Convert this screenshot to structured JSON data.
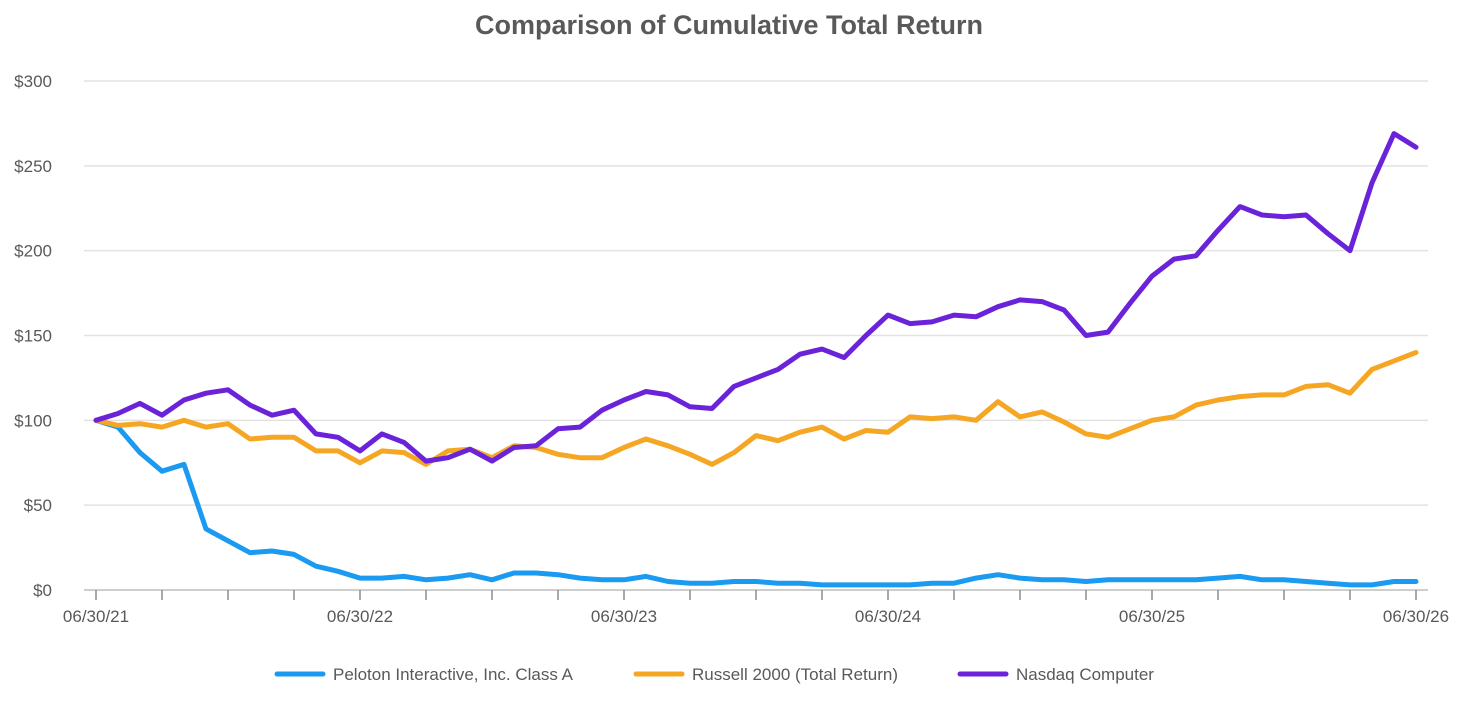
{
  "chart_data": {
    "type": "line",
    "title": "Comparison of Cumulative Total Return",
    "xlabel": "",
    "ylabel": "",
    "ylim": [
      0,
      300
    ],
    "yticks": [
      0,
      50,
      100,
      150,
      200,
      250,
      300
    ],
    "ytick_labels": [
      "$0",
      "$50",
      "$100",
      "$150",
      "$200",
      "$250",
      "$300"
    ],
    "x_count": 61,
    "minor_tick_every": 3,
    "xtick_labels": [
      {
        "index": 0,
        "label": "06/30/21"
      },
      {
        "index": 12,
        "label": "06/30/22"
      },
      {
        "index": 24,
        "label": "06/30/23"
      },
      {
        "index": 36,
        "label": "06/30/24"
      },
      {
        "index": 48,
        "label": "06/30/25"
      },
      {
        "index": 60,
        "label": "06/30/26"
      }
    ],
    "grid": true,
    "legend_position": "bottom",
    "series": [
      {
        "name": "Peloton Interactive, Inc. Class A",
        "color": "#1a9af0",
        "values": [
          100,
          96,
          81,
          70,
          74,
          36,
          29,
          22,
          23,
          21,
          14,
          11,
          7,
          7,
          8,
          6,
          7,
          9,
          6,
          10,
          10,
          9,
          7,
          6,
          6,
          8,
          5,
          4,
          4,
          5,
          5,
          4,
          4,
          3,
          3,
          3,
          3,
          3,
          4,
          4,
          7,
          9,
          7,
          6,
          6,
          5,
          6,
          6,
          6,
          6,
          6,
          7,
          8,
          6,
          6,
          5,
          4,
          3,
          3,
          5,
          5
        ]
      },
      {
        "name": "Russell 2000 (Total Return)",
        "color": "#f5a623",
        "values": [
          100,
          97,
          98,
          96,
          100,
          96,
          98,
          89,
          90,
          90,
          82,
          82,
          75,
          82,
          81,
          74,
          82,
          83,
          78,
          85,
          84,
          80,
          78,
          78,
          84,
          89,
          85,
          80,
          74,
          81,
          91,
          88,
          93,
          96,
          89,
          94,
          93,
          102,
          101,
          102,
          100,
          111,
          102,
          105,
          99,
          92,
          90,
          95,
          100,
          102,
          109,
          112,
          114,
          115,
          115,
          120,
          121,
          116,
          130,
          135,
          140
        ]
      },
      {
        "name": "Nasdaq Computer",
        "color": "#6a23d9",
        "values": [
          100,
          104,
          110,
          103,
          112,
          116,
          118,
          109,
          103,
          106,
          92,
          90,
          82,
          92,
          87,
          76,
          78,
          83,
          76,
          84,
          85,
          95,
          96,
          106,
          112,
          117,
          115,
          108,
          107,
          120,
          125,
          130,
          139,
          142,
          137,
          150,
          162,
          157,
          158,
          162,
          161,
          167,
          171,
          170,
          165,
          150,
          152,
          169,
          185,
          195,
          197,
          212,
          226,
          221,
          220,
          221,
          210,
          200,
          240,
          269,
          261
        ]
      }
    ]
  }
}
